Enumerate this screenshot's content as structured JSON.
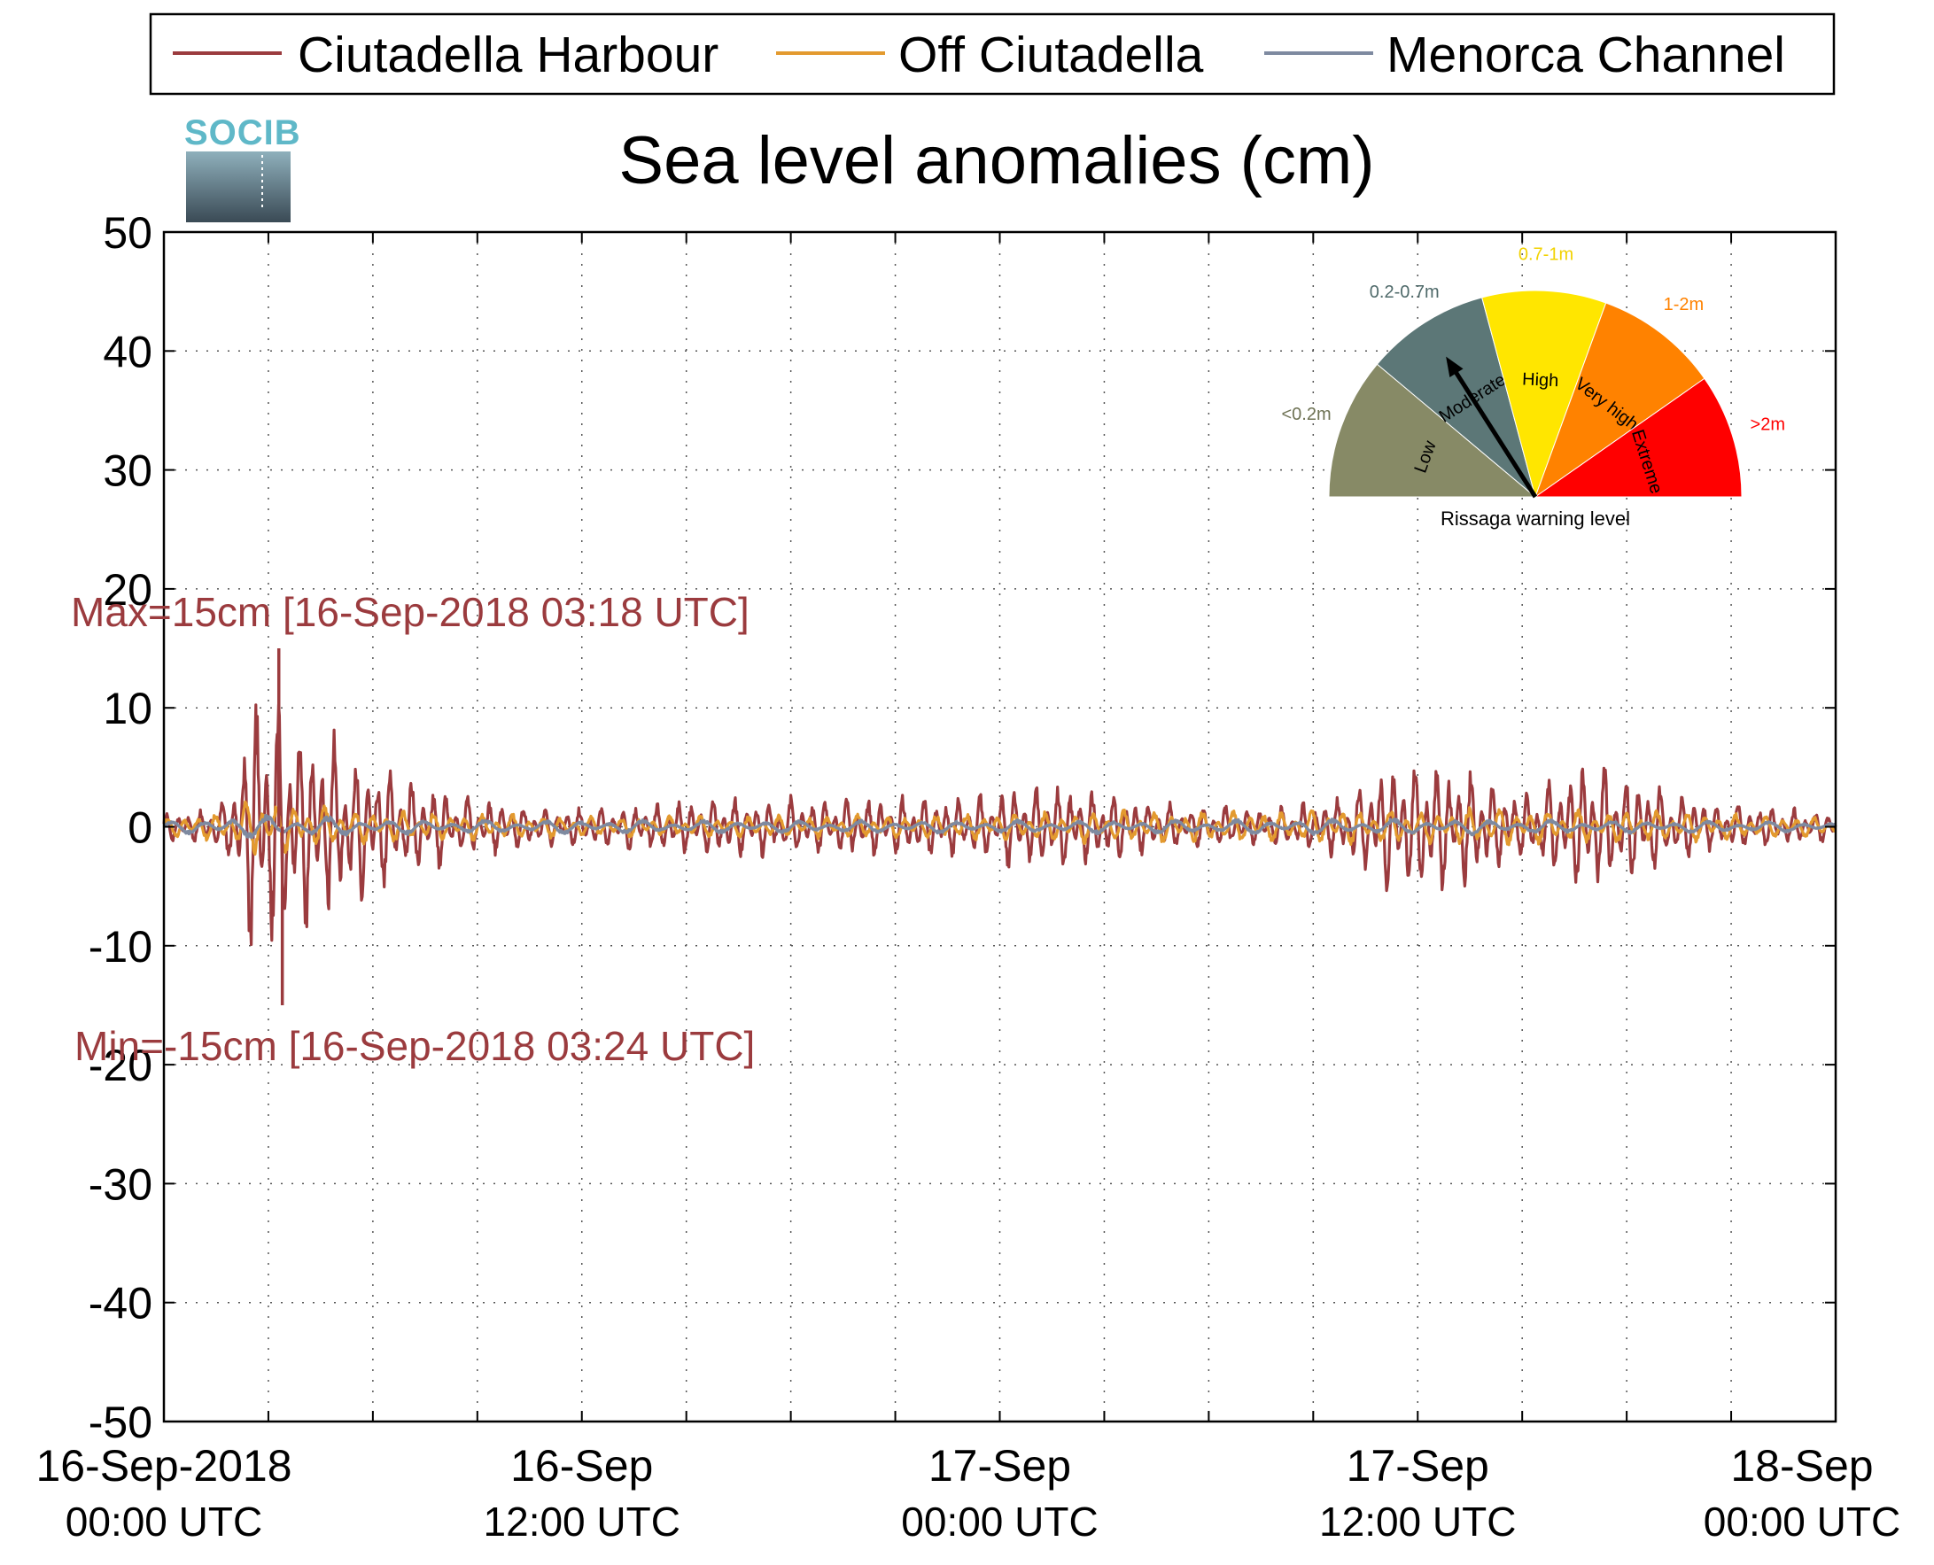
{
  "chart_data": {
    "type": "line",
    "title": "Sea level anomalies (cm)",
    "ylim": [
      -50,
      50
    ],
    "yticks": [
      50,
      40,
      30,
      20,
      10,
      0,
      -10,
      -20,
      -30,
      -40,
      -50
    ],
    "xlim": [
      "2018-09-16T00:00",
      "2018-09-18T00:00"
    ],
    "xtick_labels": [
      {
        "line1": "16-Sep-2018",
        "line2": "00:00 UTC"
      },
      {
        "line1": "16-Sep",
        "line2": "12:00 UTC"
      },
      {
        "line1": "17-Sep",
        "line2": "00:00 UTC"
      },
      {
        "line1": "17-Sep",
        "line2": "12:00 UTC"
      },
      {
        "line1": "18-Sep",
        "line2": "00:00 UTC"
      }
    ],
    "grid": true,
    "legend_position": "top",
    "series": [
      {
        "name": "Ciutadella Harbour",
        "color": "#9b3b3e",
        "envelope": [
          [
            0,
            1.5
          ],
          [
            1,
            1.5
          ],
          [
            2,
            3
          ],
          [
            3,
            15
          ],
          [
            4,
            12
          ],
          [
            5,
            10
          ],
          [
            6,
            8
          ],
          [
            8,
            5
          ],
          [
            10,
            3
          ],
          [
            12,
            2
          ],
          [
            14,
            2
          ],
          [
            16,
            2.5
          ],
          [
            18,
            3
          ],
          [
            20,
            3
          ],
          [
            22,
            3
          ],
          [
            24,
            3
          ],
          [
            26,
            3
          ],
          [
            28,
            4.5
          ],
          [
            30,
            4
          ],
          [
            32,
            2.5
          ],
          [
            34,
            2
          ],
          [
            36,
            2
          ],
          [
            38,
            3
          ],
          [
            40,
            7.5
          ],
          [
            42,
            6
          ],
          [
            44,
            3.5
          ],
          [
            46,
            7
          ],
          [
            48,
            5
          ],
          [
            50,
            2.5
          ],
          [
            52,
            2
          ],
          [
            54,
            1.5
          ]
        ]
      },
      {
        "name": "Off Ciutadella",
        "color": "#e39a2f",
        "envelope": [
          [
            0,
            1
          ],
          [
            2,
            1.5
          ],
          [
            3,
            3
          ],
          [
            5,
            2
          ],
          [
            8,
            1.5
          ],
          [
            14,
            1
          ],
          [
            24,
            1.2
          ],
          [
            28,
            1.5
          ],
          [
            40,
            1.8
          ],
          [
            46,
            1.8
          ],
          [
            54,
            1
          ]
        ]
      },
      {
        "name": "Menorca Channel",
        "color": "#7e8aa0",
        "envelope": [
          [
            0,
            0.5
          ],
          [
            3,
            1.2
          ],
          [
            8,
            0.7
          ],
          [
            24,
            0.6
          ],
          [
            40,
            0.8
          ],
          [
            54,
            0.5
          ]
        ]
      }
    ],
    "annotations": [
      {
        "text": "Max=15cm [16-Sep-2018 03:18 UTC]",
        "x": "2018-09-16T03:18",
        "y": 15
      },
      {
        "text": "Min=-15cm [16-Sep-2018 03:24 UTC]",
        "x": "2018-09-16T03:24",
        "y": -15
      }
    ]
  },
  "logo": {
    "text": "SOCIB"
  },
  "gauge": {
    "caption": "Rissaga warning level",
    "pointer_level": "Moderate",
    "sectors": [
      {
        "name": "Low",
        "range": "<0.2m",
        "color": "#878a66",
        "range_color": "#6f7355"
      },
      {
        "name": "Moderate",
        "range": "0.2-0.7m",
        "color": "#5c7777",
        "range_color": "#4f6a6a"
      },
      {
        "name": "High",
        "range": "0.7-1m",
        "color": "#ffe600",
        "range_color": "#f2d200"
      },
      {
        "name": "Very high",
        "range": "1-2m",
        "color": "#ff8200",
        "range_color": "#ff8200"
      },
      {
        "name": "Extreme",
        "range": ">2m",
        "color": "#ff0000",
        "range_color": "#ff0000"
      }
    ]
  }
}
